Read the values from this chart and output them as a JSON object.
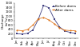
{
  "title": "",
  "xlabel": "",
  "ylabel": "Discharge\n(m³/s)",
  "months": [
    "Jan",
    "Feb",
    "Mar",
    "Apr",
    "May",
    "Jun",
    "Jul",
    "Aug",
    "Sep",
    "Oct",
    "Nov",
    "Dec"
  ],
  "before_dams": [
    210,
    190,
    230,
    380,
    850,
    1480,
    1380,
    880,
    520,
    330,
    270,
    220
  ],
  "after_dams": [
    370,
    340,
    400,
    600,
    880,
    940,
    830,
    660,
    470,
    370,
    350,
    340
  ],
  "before_color": "#404080",
  "after_color": "#e07820",
  "before_label": "Before dams",
  "after_label": "After dams",
  "ylim": [
    0,
    1600
  ],
  "yticks": [
    0,
    200,
    400,
    600,
    800,
    1000,
    1200,
    1400,
    1600
  ],
  "legend_fontsize": 3.0,
  "axis_fontsize": 2.8,
  "tick_fontsize": 2.5,
  "marker_size": 1.5,
  "line_width": 0.6
}
